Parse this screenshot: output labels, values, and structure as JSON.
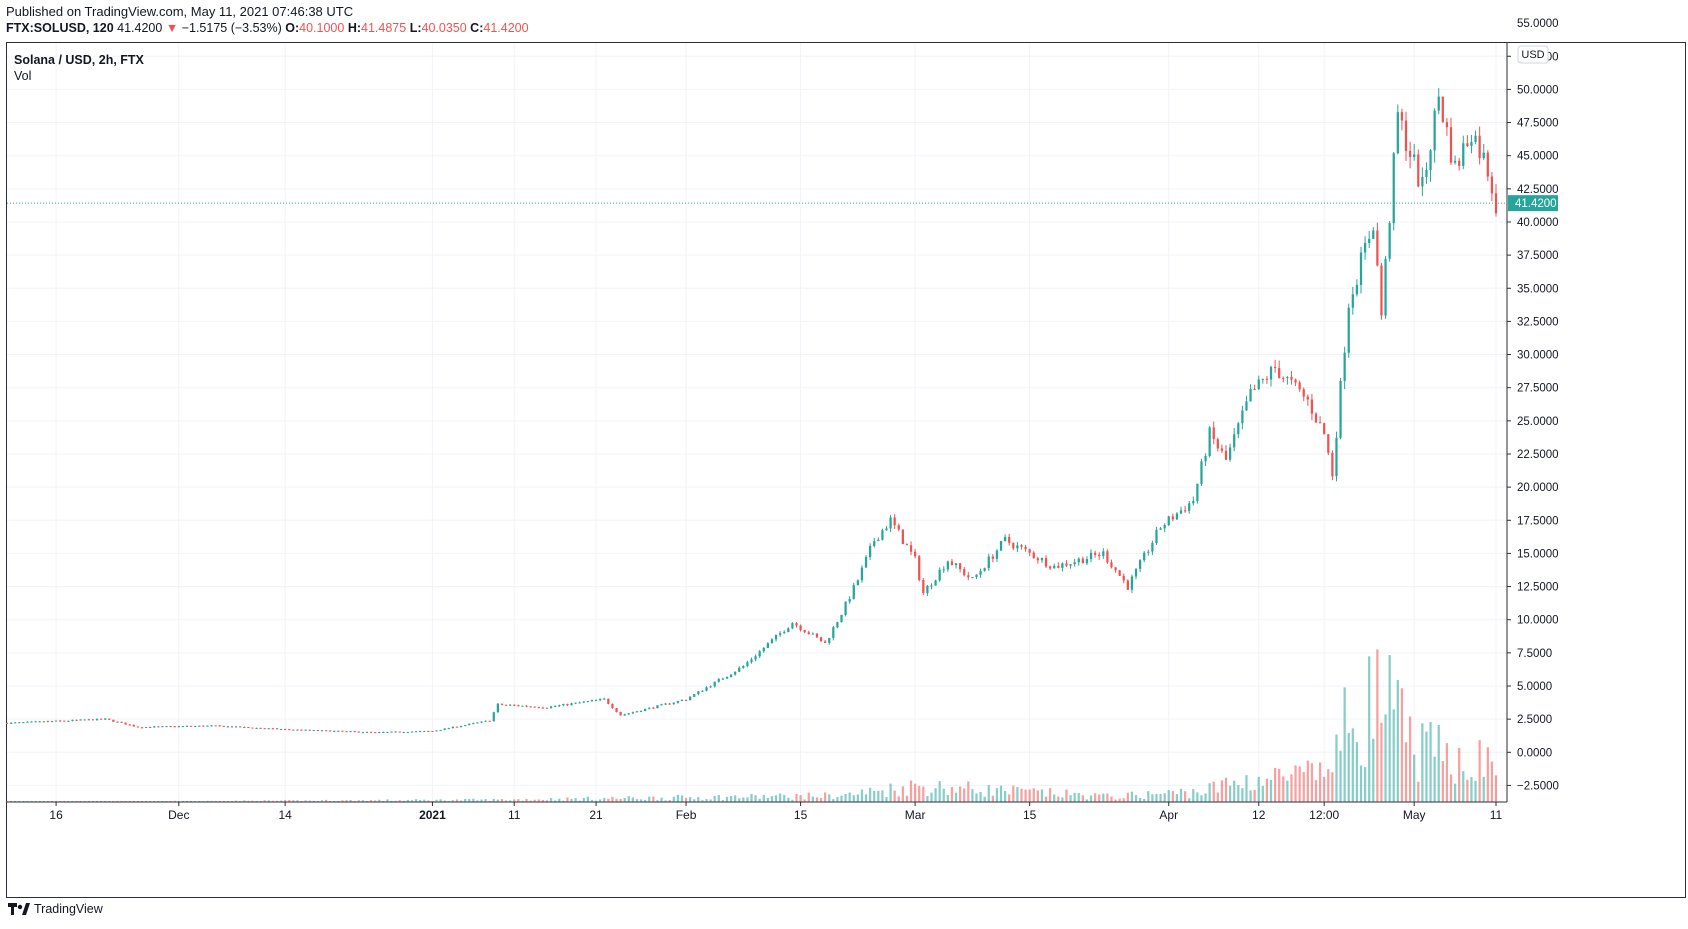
{
  "header": {
    "published": "Published on TradingView.com, May 11, 2021 07:46:38 UTC",
    "symbol": "FTX:SOLUSD, 120",
    "last": "41.4200",
    "change_arrow": "▼",
    "change": "−1.5175 (−3.53%)",
    "open_label": "O:",
    "open": "40.1000",
    "high_label": "H:",
    "high": "41.4875",
    "low_label": "L:",
    "low": "40.0350",
    "close_label": "C:",
    "close": "41.4200"
  },
  "legend": {
    "title": "Solana / USD, 2h, FTX",
    "vol": "Vol"
  },
  "footer": {
    "brand": "TradingView",
    "logo_icon": "tradingview-logo-icon"
  },
  "colors": {
    "up": "#26a69a",
    "down": "#ef5350",
    "price_line": "#26a69a",
    "grid": "#f0f3fa",
    "text": "#131722"
  },
  "chart_data": {
    "type": "candlestick",
    "currency_label": "USD",
    "last_price_label": "41.4200",
    "last_price": 41.42,
    "ylim": [
      -3.75,
      53.5
    ],
    "y_ticks": [
      -2.5,
      0,
      2.5,
      5,
      7.5,
      10,
      12.5,
      15,
      17.5,
      20,
      22.5,
      25,
      27.5,
      30,
      32.5,
      35,
      37.5,
      40,
      42.5,
      45,
      47.5,
      50,
      52.5
    ],
    "y_tick_labels": [
      "−2.5000",
      "0.0000",
      "2.5000",
      "5.0000",
      "7.5000",
      "10.0000",
      "12.5000",
      "15.0000",
      "17.5000",
      "20.0000",
      "22.5000",
      "25.0000",
      "27.5000",
      "30.0000",
      "32.5000",
      "35.0000",
      "37.5000",
      "40.0000",
      "42.5000",
      "45.0000",
      "47.5000",
      "50.0000",
      "52.5000"
    ],
    "x_range": [
      "2020-11-10",
      "2021-05-11"
    ],
    "x_ticks": [
      {
        "date": "2020-11-16",
        "label": "16",
        "bold": false
      },
      {
        "date": "2020-12-01",
        "label": "Dec",
        "bold": false
      },
      {
        "date": "2020-12-14",
        "label": "14",
        "bold": false
      },
      {
        "date": "2021-01-01",
        "label": "2021",
        "bold": true
      },
      {
        "date": "2021-01-11",
        "label": "11",
        "bold": false
      },
      {
        "date": "2021-01-21",
        "label": "21",
        "bold": false
      },
      {
        "date": "2021-02-01",
        "label": "Feb",
        "bold": false
      },
      {
        "date": "2021-02-15",
        "label": "15",
        "bold": false
      },
      {
        "date": "2021-03-01",
        "label": "Mar",
        "bold": false
      },
      {
        "date": "2021-03-15",
        "label": "15",
        "bold": false
      },
      {
        "date": "2021-04-01",
        "label": "Apr",
        "bold": false
      },
      {
        "date": "2021-04-12",
        "label": "12",
        "bold": false
      },
      {
        "date": "2021-04-20",
        "label": "12:00",
        "bold": false
      },
      {
        "date": "2021-05-01",
        "label": "May",
        "bold": false
      },
      {
        "date": "2021-05-11",
        "label": "11",
        "bold": false
      }
    ],
    "price_path": [
      [
        "2020-11-10",
        2.2
      ],
      [
        "2020-11-22",
        2.5
      ],
      [
        "2020-11-26",
        1.9
      ],
      [
        "2020-12-05",
        2.0
      ],
      [
        "2020-12-15",
        1.7
      ],
      [
        "2020-12-25",
        1.5
      ],
      [
        "2021-01-01",
        1.6
      ],
      [
        "2021-01-08",
        2.4
      ],
      [
        "2021-01-09",
        3.6
      ],
      [
        "2021-01-15",
        3.4
      ],
      [
        "2021-01-22",
        4.0
      ],
      [
        "2021-01-24",
        2.8
      ],
      [
        "2021-02-01",
        4.0
      ],
      [
        "2021-02-08",
        6.5
      ],
      [
        "2021-02-14",
        9.8
      ],
      [
        "2021-02-18",
        8.2
      ],
      [
        "2021-02-20",
        10.5
      ],
      [
        "2021-02-22",
        13.0
      ],
      [
        "2021-02-24",
        16.0
      ],
      [
        "2021-02-26",
        17.5
      ],
      [
        "2021-03-01",
        14.5
      ],
      [
        "2021-03-02",
        12.0
      ],
      [
        "2021-03-05",
        14.5
      ],
      [
        "2021-03-08",
        13.0
      ],
      [
        "2021-03-12",
        16.0
      ],
      [
        "2021-03-18",
        14.0
      ],
      [
        "2021-03-24",
        15.0
      ],
      [
        "2021-03-27",
        12.5
      ],
      [
        "2021-03-31",
        17.0
      ],
      [
        "2021-04-04",
        19.0
      ],
      [
        "2021-04-06",
        24.0
      ],
      [
        "2021-04-08",
        22.0
      ],
      [
        "2021-04-11",
        27.0
      ],
      [
        "2021-04-14",
        29.0
      ],
      [
        "2021-04-18",
        26.5
      ],
      [
        "2021-04-20",
        24.0
      ],
      [
        "2021-04-21",
        21.0
      ],
      [
        "2021-04-23",
        34.0
      ],
      [
        "2021-04-26",
        40.0
      ],
      [
        "2021-04-27",
        33.0
      ],
      [
        "2021-04-29",
        48.0
      ],
      [
        "2021-05-02",
        42.5
      ],
      [
        "2021-05-04",
        49.5
      ],
      [
        "2021-05-06",
        44.0
      ],
      [
        "2021-05-08",
        47.0
      ],
      [
        "2021-05-10",
        44.0
      ],
      [
        "2021-05-11",
        41.42
      ]
    ],
    "volume_path": [
      [
        "2020-11-10",
        0.0
      ],
      [
        "2021-01-08",
        0.2
      ],
      [
        "2021-02-20",
        0.6
      ],
      [
        "2021-03-01",
        1.5
      ],
      [
        "2021-03-25",
        0.5
      ],
      [
        "2021-04-05",
        1.0
      ],
      [
        "2021-04-10",
        2.0
      ],
      [
        "2021-04-20",
        2.6
      ],
      [
        "2021-04-23",
        7.5
      ],
      [
        "2021-04-27",
        10.0
      ],
      [
        "2021-05-01",
        5.0
      ],
      [
        "2021-05-11",
        3.5
      ]
    ]
  }
}
